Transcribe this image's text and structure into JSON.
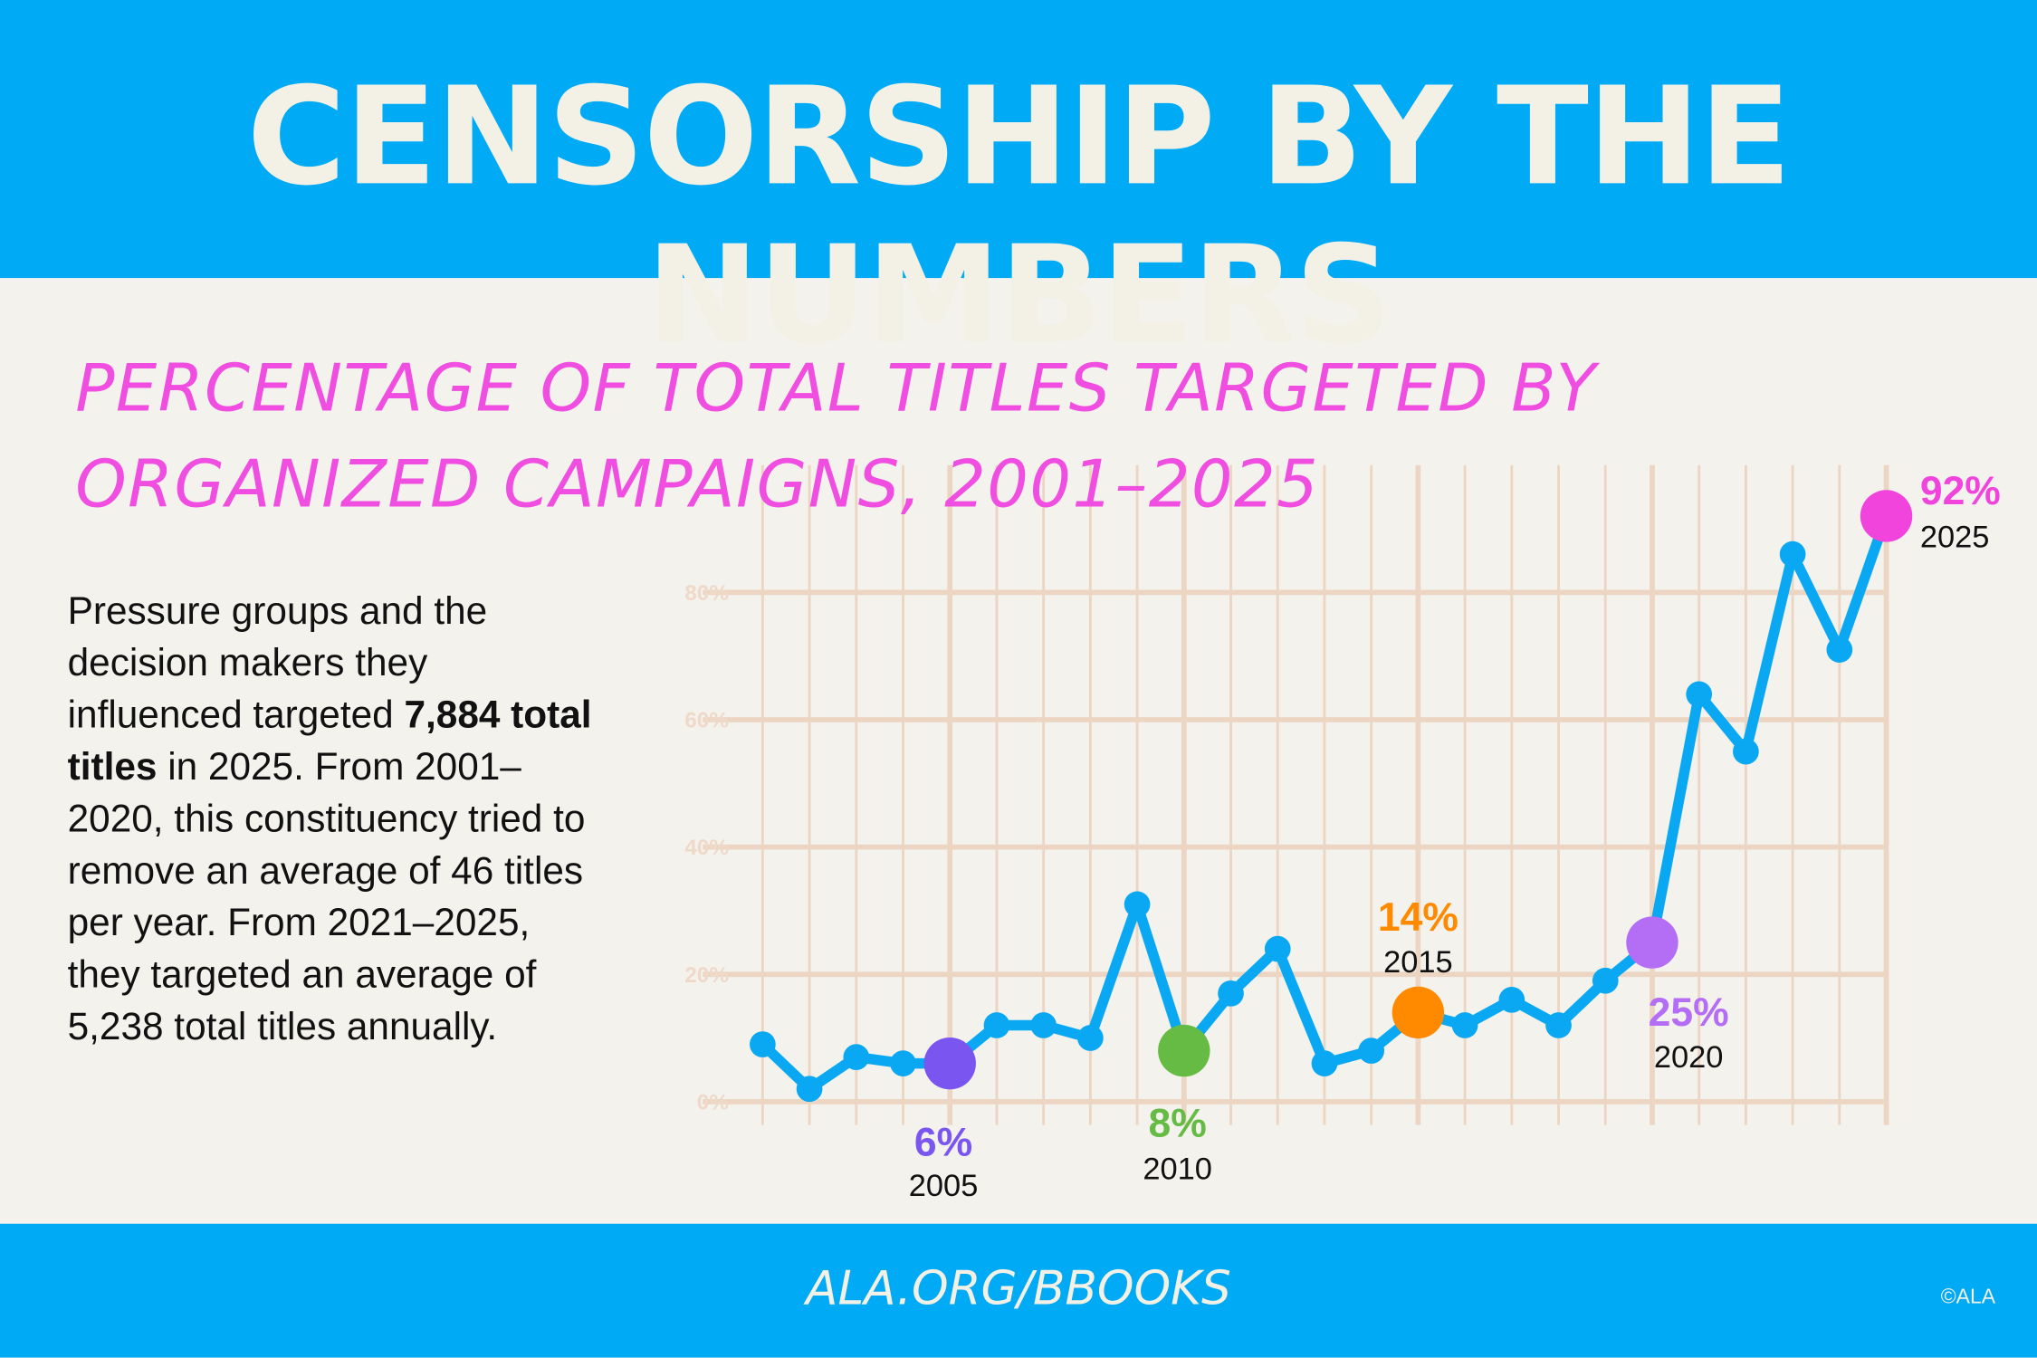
{
  "header": {
    "title": "CENSORSHIP BY THE NUMBERS"
  },
  "body": {
    "text_parts": [
      "Pressure groups and the decision makers they influenced targeted ",
      "7,884 total titles",
      " in 2025. From 2001–2020, this constituency tried to remove an average of 46 titles per year. From 2021–2025, they targeted an average of 5,238 total titles annually."
    ]
  },
  "footer": {
    "url": "ALA.ORG/BBOOKS",
    "copyright": "©ALA"
  },
  "chart_data": {
    "type": "line",
    "title": "PERCENTAGE OF TOTAL TITLES TARGETED BY ORGANIZED CAMPAIGNS, 2001–2025",
    "x": [
      2001,
      2002,
      2003,
      2004,
      2005,
      2006,
      2007,
      2008,
      2009,
      2010,
      2011,
      2012,
      2013,
      2014,
      2015,
      2016,
      2017,
      2018,
      2019,
      2020,
      2021,
      2022,
      2023,
      2024,
      2025
    ],
    "series": [
      {
        "color": "#0aa8f2",
        "values": [
          9,
          2,
          7,
          6,
          6,
          12,
          12,
          10,
          31,
          8,
          17,
          24,
          6,
          8,
          14,
          12,
          16,
          12,
          19,
          25,
          64,
          55,
          86,
          71,
          92
        ],
        "value_labels": [
          null,
          null,
          null,
          null,
          "6%",
          null,
          null,
          null,
          null,
          "8%",
          null,
          null,
          null,
          null,
          "14%",
          null,
          null,
          null,
          null,
          "25%",
          null,
          null,
          null,
          null,
          "92%"
        ],
        "marker_colors": [
          null,
          null,
          null,
          null,
          "#7a55f0",
          null,
          null,
          null,
          null,
          "#66bb44",
          null,
          null,
          null,
          null,
          "#ff8a00",
          null,
          null,
          null,
          null,
          "#b46ef5",
          null,
          null,
          null,
          null,
          "#f044dc"
        ]
      }
    ],
    "xlim": [
      2000,
      2025
    ],
    "ylim": [
      0,
      100
    ],
    "yticks": [
      {
        "value": 0,
        "label": "0%"
      },
      {
        "value": 20,
        "label": "20%"
      },
      {
        "value": 40,
        "label": "40%"
      },
      {
        "value": 60,
        "label": "60%"
      },
      {
        "value": 80,
        "label": "80%"
      }
    ],
    "grid": true
  }
}
